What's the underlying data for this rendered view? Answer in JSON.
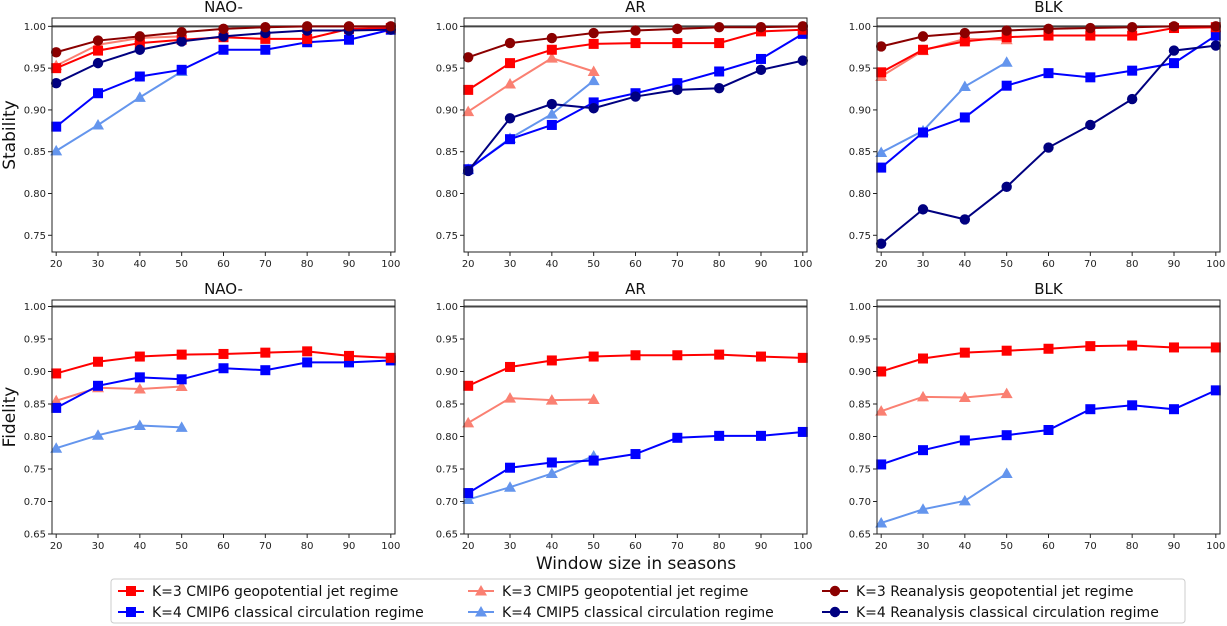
{
  "chart_data": {
    "type": "line",
    "xlabel": "Window size in seasons",
    "x": [
      20,
      30,
      40,
      50,
      60,
      70,
      80,
      90,
      100
    ],
    "xticks": [
      "20",
      "30",
      "40",
      "50",
      "60",
      "70",
      "80",
      "90",
      "100"
    ],
    "reference_line": 1.0,
    "legend": {
      "placement": "bottom-center",
      "entries": [
        {
          "key": "k3_cmip6",
          "label": "K=3 CMIP6 geopotential jet regime",
          "color": "#ff0000",
          "marker": "square"
        },
        {
          "key": "k4_cmip6",
          "label": "K=4 CMIP6 classical circulation regime",
          "color": "#0000ff",
          "marker": "square"
        },
        {
          "key": "k3_cmip5",
          "label": "K=3 CMIP5 geopotential jet regime",
          "color": "#fa8072",
          "marker": "triangle"
        },
        {
          "key": "k4_cmip5",
          "label": "K=4 CMIP5 classical circulation regime",
          "color": "#6495ed",
          "marker": "triangle"
        },
        {
          "key": "k3_rea",
          "label": "K=3 Reanalysis geopotential jet regime",
          "color": "#8b0000",
          "marker": "circle"
        },
        {
          "key": "k4_rea",
          "label": "K=4 Reanalysis classical circulation regime",
          "color": "#000080",
          "marker": "circle"
        }
      ]
    },
    "panels": [
      {
        "row": "stability",
        "title": "NAO-",
        "ylabel": "Stability",
        "ylim": [
          0.73,
          1.01
        ],
        "yticks": [
          "0.75",
          "0.80",
          "0.85",
          "0.90",
          "0.95",
          "1.00"
        ],
        "ytick_values": [
          0.75,
          0.8,
          0.85,
          0.9,
          0.95,
          1.0
        ],
        "series": {
          "k3_rea": [
            0.969,
            0.983,
            0.988,
            0.993,
            0.997,
            0.999,
            1.0,
            1.0,
            1.0
          ],
          "k3_cmip5": [
            0.953,
            0.978,
            0.986,
            0.988
          ],
          "k3_cmip6": [
            0.95,
            0.971,
            0.98,
            0.984,
            0.987,
            0.985,
            0.985,
            0.997,
            0.998
          ],
          "k4_rea": [
            0.932,
            0.956,
            0.972,
            0.982,
            0.988,
            0.992,
            0.995,
            0.995,
            0.996
          ],
          "k4_cmip6": [
            0.88,
            0.92,
            0.94,
            0.948,
            0.972,
            0.972,
            0.981,
            0.984,
            0.996
          ],
          "k4_cmip5": [
            0.851,
            0.882,
            0.915,
            0.946
          ]
        }
      },
      {
        "row": "stability",
        "title": "AR",
        "ylabel": "",
        "ylim": [
          0.73,
          1.01
        ],
        "yticks": [
          "0.75",
          "0.80",
          "0.85",
          "0.90",
          "0.95",
          "1.00"
        ],
        "ytick_values": [
          0.75,
          0.8,
          0.85,
          0.9,
          0.95,
          1.0
        ],
        "series": {
          "k3_rea": [
            0.963,
            0.98,
            0.986,
            0.992,
            0.995,
            0.997,
            0.999,
            0.999,
            1.0
          ],
          "k3_cmip6": [
            0.924,
            0.956,
            0.972,
            0.979,
            0.98,
            0.98,
            0.98,
            0.994,
            0.996
          ],
          "k3_cmip5": [
            0.898,
            0.931,
            0.962,
            0.946
          ],
          "k4_cmip6": [
            0.829,
            0.865,
            0.882,
            0.909,
            0.92,
            0.932,
            0.946,
            0.961,
            0.991
          ],
          "k4_rea": [
            0.827,
            0.89,
            0.907,
            0.902,
            0.916,
            0.924,
            0.926,
            0.948,
            0.959
          ],
          "k4_cmip5": [
            0.829,
            0.866,
            0.895,
            0.935
          ]
        }
      },
      {
        "row": "stability",
        "title": "BLK",
        "ylabel": "",
        "ylim": [
          0.73,
          1.01
        ],
        "yticks": [
          "0.75",
          "0.80",
          "0.85",
          "0.90",
          "0.95",
          "1.00"
        ],
        "ytick_values": [
          0.75,
          0.8,
          0.85,
          0.9,
          0.95,
          1.0
        ],
        "series": {
          "k3_rea": [
            0.976,
            0.988,
            0.992,
            0.995,
            0.997,
            0.998,
            0.999,
            1.0,
            1.0
          ],
          "k3_cmip6": [
            0.945,
            0.972,
            0.982,
            0.987,
            0.989,
            0.989,
            0.989,
            0.998,
            0.999
          ],
          "k3_cmip5": [
            0.94,
            0.971,
            0.985,
            0.984
          ],
          "k4_cmip5": [
            0.849,
            0.875,
            0.928,
            0.957
          ],
          "k4_cmip6": [
            0.831,
            0.873,
            0.891,
            0.929,
            0.944,
            0.939,
            0.947,
            0.956,
            0.989
          ],
          "k4_rea": [
            0.74,
            0.781,
            0.769,
            0.808,
            0.855,
            0.882,
            0.913,
            0.971,
            0.977
          ]
        }
      },
      {
        "row": "fidelity",
        "title": "NAO-",
        "ylabel": "Fidelity",
        "ylim": [
          0.65,
          1.01
        ],
        "yticks": [
          "0.65",
          "0.70",
          "0.75",
          "0.80",
          "0.85",
          "0.90",
          "0.95",
          "1.00"
        ],
        "ytick_values": [
          0.65,
          0.7,
          0.75,
          0.8,
          0.85,
          0.9,
          0.95,
          1.0
        ],
        "series": {
          "k3_cmip6": [
            0.897,
            0.915,
            0.923,
            0.926,
            0.927,
            0.929,
            0.931,
            0.924,
            0.921
          ],
          "k4_cmip6": [
            0.844,
            0.878,
            0.891,
            0.888,
            0.905,
            0.902,
            0.914,
            0.914,
            0.917
          ],
          "k3_cmip5": [
            0.855,
            0.875,
            0.873,
            0.877
          ],
          "k4_cmip5": [
            0.782,
            0.802,
            0.817,
            0.814
          ]
        }
      },
      {
        "row": "fidelity",
        "title": "AR",
        "ylabel": "",
        "ylim": [
          0.65,
          1.01
        ],
        "yticks": [
          "0.65",
          "0.70",
          "0.75",
          "0.80",
          "0.85",
          "0.90",
          "0.95",
          "1.00"
        ],
        "ytick_values": [
          0.65,
          0.7,
          0.75,
          0.8,
          0.85,
          0.9,
          0.95,
          1.0
        ],
        "series": {
          "k3_cmip6": [
            0.878,
            0.907,
            0.917,
            0.923,
            0.925,
            0.925,
            0.926,
            0.923,
            0.921
          ],
          "k3_cmip5": [
            0.821,
            0.859,
            0.856,
            0.857
          ],
          "k4_cmip6": [
            0.713,
            0.752,
            0.76,
            0.763,
            0.773,
            0.798,
            0.801,
            0.801,
            0.807
          ],
          "k4_cmip5": [
            0.703,
            0.722,
            0.743,
            0.77
          ]
        }
      },
      {
        "row": "fidelity",
        "title": "BLK",
        "ylabel": "",
        "ylim": [
          0.65,
          1.01
        ],
        "yticks": [
          "0.65",
          "0.70",
          "0.75",
          "0.80",
          "0.85",
          "0.90",
          "0.95",
          "1.00"
        ],
        "ytick_values": [
          0.65,
          0.7,
          0.75,
          0.8,
          0.85,
          0.9,
          0.95,
          1.0
        ],
        "series": {
          "k3_cmip6": [
            0.9,
            0.92,
            0.929,
            0.932,
            0.935,
            0.939,
            0.94,
            0.937,
            0.937
          ],
          "k3_cmip5": [
            0.839,
            0.861,
            0.86,
            0.866
          ],
          "k4_cmip6": [
            0.757,
            0.779,
            0.794,
            0.802,
            0.81,
            0.842,
            0.848,
            0.842,
            0.871
          ],
          "k4_cmip5": [
            0.667,
            0.688,
            0.701,
            0.743
          ]
        }
      }
    ]
  }
}
